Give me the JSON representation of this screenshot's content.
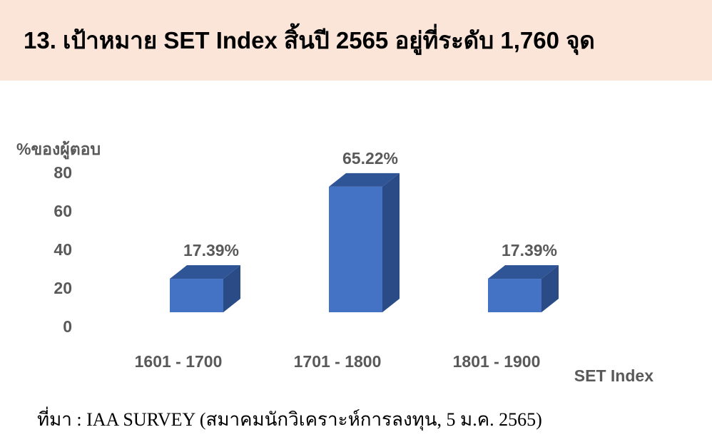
{
  "header": {
    "title": "13. เป้าหมาย SET Index สิ้นปี 2565 อยู่ที่ระดับ 1,760 จุด"
  },
  "colors": {
    "header_bg": "#fbe5d9",
    "bar_front": "#4472c4",
    "bar_top": "#2f5597",
    "bar_side": "#2a4b86",
    "text_gray": "#595959"
  },
  "chart_data": {
    "type": "bar",
    "style": "3d-column",
    "categories": [
      "1601 - 1700",
      "1701 - 1800",
      "1801 - 1900"
    ],
    "values": [
      17.39,
      65.22,
      17.39
    ],
    "data_labels": [
      "17.39%",
      "65.22%",
      "17.39%"
    ],
    "ylabel": "%ของผู้ตอบ",
    "xlabel": "SET Index",
    "yticks": [
      "0",
      "20",
      "40",
      "60",
      "80"
    ],
    "ylim": [
      0,
      80
    ],
    "grid": false,
    "legend": "none"
  },
  "source": "ที่มา : IAA SURVEY (สมาคมนักวิเคราะห์การลงทุน, 5 ม.ค. 2565)"
}
